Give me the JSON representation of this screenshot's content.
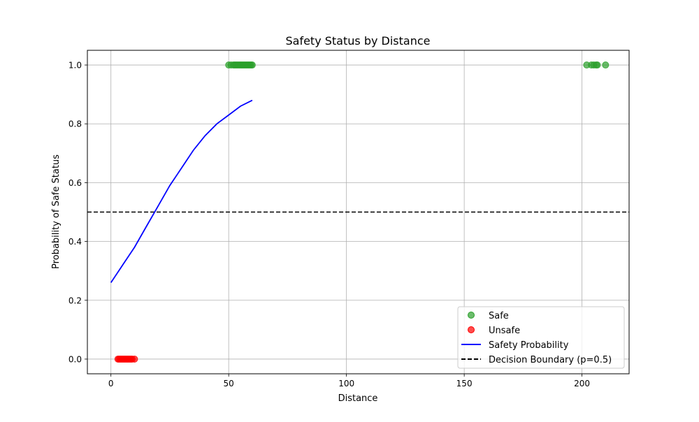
{
  "chart_data": {
    "type": "scatter",
    "title": "Safety Status by Distance",
    "xlabel": "Distance",
    "ylabel": "Probability of Safe Status",
    "xlim": [
      -10,
      220
    ],
    "ylim": [
      -0.05,
      1.05
    ],
    "xticks": [
      0,
      50,
      100,
      150,
      200
    ],
    "yticks": [
      0.0,
      0.2,
      0.4,
      0.6,
      0.8,
      1.0
    ],
    "xtick_labels": [
      "0",
      "50",
      "100",
      "150",
      "200"
    ],
    "ytick_labels": [
      "0.0",
      "0.2",
      "0.4",
      "0.6",
      "0.8",
      "1.0"
    ],
    "grid": true,
    "legend_position": "lower-right",
    "series": [
      {
        "name": "Safe",
        "kind": "scatter",
        "color": "#2ca02c",
        "points": [
          [
            50,
            1
          ],
          [
            51,
            1
          ],
          [
            52,
            1
          ],
          [
            52.5,
            1
          ],
          [
            53,
            1
          ],
          [
            53.5,
            1
          ],
          [
            54,
            1
          ],
          [
            54.5,
            1
          ],
          [
            55,
            1
          ],
          [
            55.5,
            1
          ],
          [
            56,
            1
          ],
          [
            56.5,
            1
          ],
          [
            57,
            1
          ],
          [
            57.5,
            1
          ],
          [
            58,
            1
          ],
          [
            58.5,
            1
          ],
          [
            59,
            1
          ],
          [
            59.5,
            1
          ],
          [
            60,
            1
          ],
          [
            202,
            1
          ],
          [
            204,
            1
          ],
          [
            205,
            1
          ],
          [
            206,
            1
          ],
          [
            206.5,
            1
          ],
          [
            210,
            1
          ]
        ]
      },
      {
        "name": "Unsafe",
        "kind": "scatter",
        "color": "#ff0000",
        "points": [
          [
            3,
            0
          ],
          [
            3.5,
            0
          ],
          [
            4,
            0
          ],
          [
            4.5,
            0
          ],
          [
            5,
            0
          ],
          [
            5.5,
            0
          ],
          [
            6,
            0
          ],
          [
            6.5,
            0
          ],
          [
            7,
            0
          ],
          [
            7.5,
            0
          ],
          [
            8,
            0
          ],
          [
            8.5,
            0
          ],
          [
            9,
            0
          ],
          [
            10,
            0
          ]
        ]
      },
      {
        "name": "Safety Probability",
        "kind": "line",
        "color": "#0000ff",
        "points": [
          [
            0,
            0.26
          ],
          [
            5,
            0.32
          ],
          [
            10,
            0.38
          ],
          [
            15,
            0.45
          ],
          [
            20,
            0.52
          ],
          [
            25,
            0.59
          ],
          [
            30,
            0.65
          ],
          [
            35,
            0.71
          ],
          [
            40,
            0.76
          ],
          [
            45,
            0.8
          ],
          [
            50,
            0.83
          ],
          [
            55,
            0.86
          ],
          [
            60,
            0.88
          ]
        ]
      },
      {
        "name": "Decision Boundary (p=0.5)",
        "kind": "hline",
        "color": "#000000",
        "y": 0.5
      }
    ]
  }
}
